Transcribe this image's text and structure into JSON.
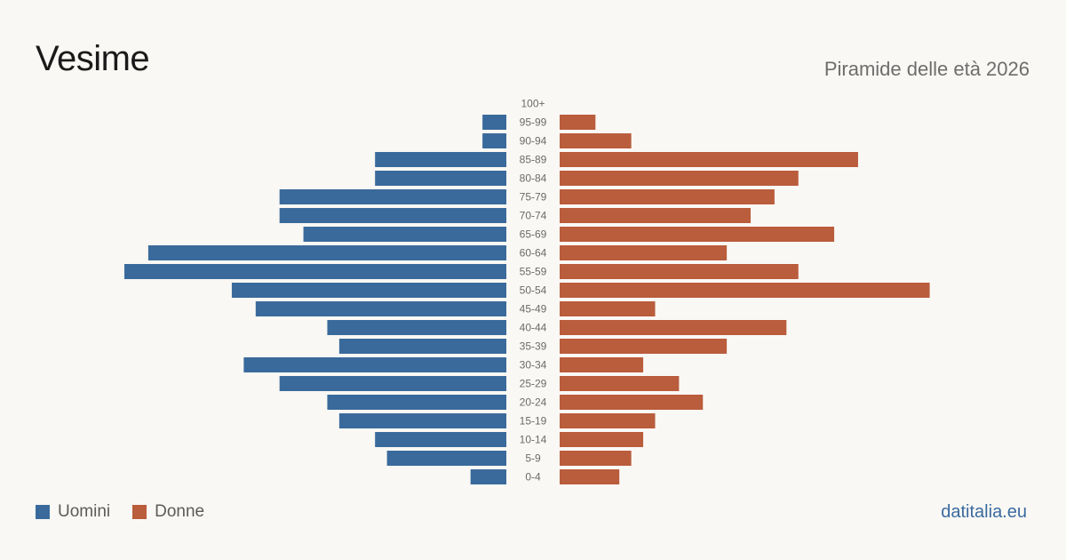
{
  "header": {
    "title": "Vesime",
    "subtitle": "Piramide delle età 2026"
  },
  "legend": {
    "items": [
      {
        "label": "Uomini",
        "color": "#3a6a9c"
      },
      {
        "label": "Donne",
        "color": "#b95d3d"
      }
    ]
  },
  "footer": {
    "site": "datitalia.eu"
  },
  "chart_data": {
    "type": "bar",
    "orientation": "horizontal",
    "categories": [
      "100+",
      "95-99",
      "90-94",
      "85-89",
      "80-84",
      "75-79",
      "70-74",
      "65-69",
      "60-64",
      "55-59",
      "50-54",
      "45-49",
      "40-44",
      "35-39",
      "30-34",
      "25-29",
      "20-24",
      "15-19",
      "10-14",
      "5-9",
      "0-4"
    ],
    "series": [
      {
        "name": "Uomini",
        "color": "#3a6a9c",
        "values": [
          0,
          2,
          2,
          11,
          11,
          19,
          19,
          17,
          30,
          32,
          23,
          21,
          15,
          14,
          22,
          19,
          15,
          14,
          11,
          10,
          3
        ]
      },
      {
        "name": "Donne",
        "color": "#b95d3d",
        "values": [
          0,
          3,
          6,
          25,
          20,
          18,
          16,
          23,
          14,
          20,
          31,
          8,
          19,
          14,
          7,
          10,
          12,
          8,
          7,
          6,
          5
        ]
      }
    ],
    "xlim": [
      0,
      32
    ],
    "legend_position": "bottom-left",
    "grid": false
  }
}
